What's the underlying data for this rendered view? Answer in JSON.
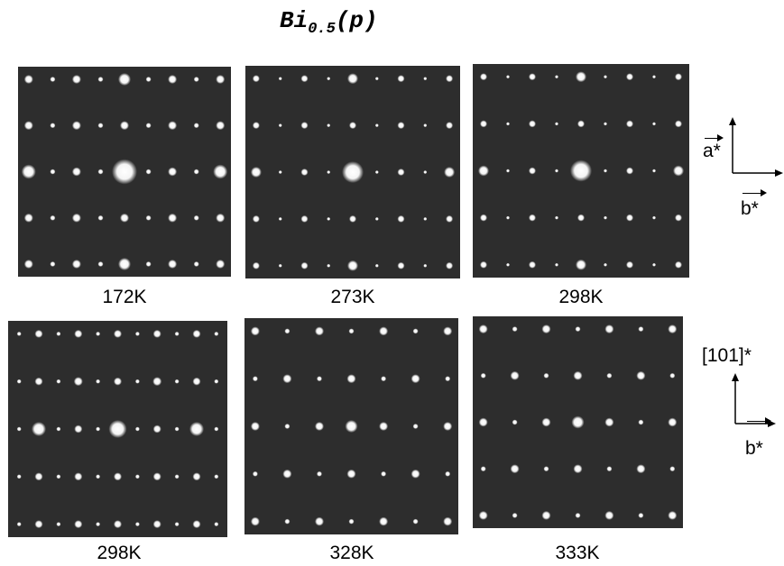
{
  "figure": {
    "title_main": "Bi",
    "title_sub": "0.5",
    "title_suffix": "(p)"
  },
  "panels": [
    {
      "label": "172K"
    },
    {
      "label": "273K"
    },
    {
      "label": "298K"
    },
    {
      "label": "298K"
    },
    {
      "label": "328K"
    },
    {
      "label": "333K"
    }
  ],
  "axes_top": {
    "vertical_label": "a*",
    "horizontal_label": "b*"
  },
  "axes_bottom": {
    "vertical_label": "[101]*",
    "horizontal_label": "b*"
  }
}
